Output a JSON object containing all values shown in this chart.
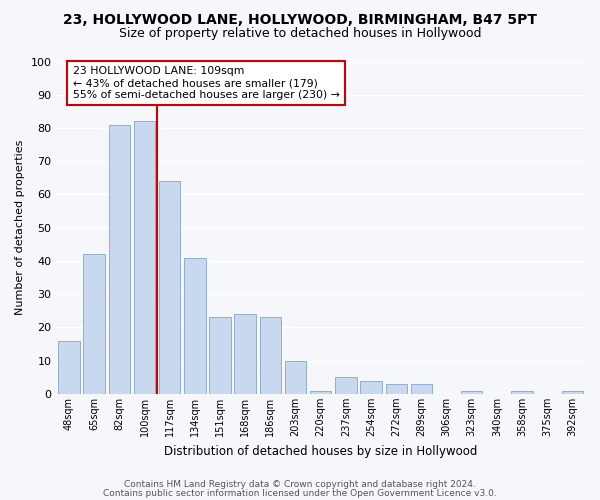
{
  "title": "23, HOLLYWOOD LANE, HOLLYWOOD, BIRMINGHAM, B47 5PT",
  "subtitle": "Size of property relative to detached houses in Hollywood",
  "xlabel": "Distribution of detached houses by size in Hollywood",
  "ylabel": "Number of detached properties",
  "bar_labels": [
    "48sqm",
    "65sqm",
    "82sqm",
    "100sqm",
    "117sqm",
    "134sqm",
    "151sqm",
    "168sqm",
    "186sqm",
    "203sqm",
    "220sqm",
    "237sqm",
    "254sqm",
    "272sqm",
    "289sqm",
    "306sqm",
    "323sqm",
    "340sqm",
    "358sqm",
    "375sqm",
    "392sqm"
  ],
  "bar_values": [
    16,
    42,
    81,
    82,
    64,
    41,
    23,
    24,
    23,
    10,
    1,
    5,
    4,
    3,
    3,
    0,
    1,
    0,
    1,
    0,
    1
  ],
  "bar_color": "#c8d8ee",
  "bar_edge_color": "#90aed0",
  "highlight_line_color": "#cc0000",
  "annotation_line1": "23 HOLLYWOOD LANE: 109sqm",
  "annotation_line2": "← 43% of detached houses are smaller (179)",
  "annotation_line3": "55% of semi-detached houses are larger (230) →",
  "annotation_box_color": "#ffffff",
  "annotation_box_edge": "#cc0000",
  "ylim": [
    0,
    100
  ],
  "yticks": [
    0,
    10,
    20,
    30,
    40,
    50,
    60,
    70,
    80,
    90,
    100
  ],
  "footer1": "Contains HM Land Registry data © Crown copyright and database right 2024.",
  "footer2": "Contains public sector information licensed under the Open Government Licence v3.0.",
  "bg_color": "#f5f7fb",
  "grid_color": "#d8dde8",
  "title_fontsize": 10,
  "subtitle_fontsize": 9
}
